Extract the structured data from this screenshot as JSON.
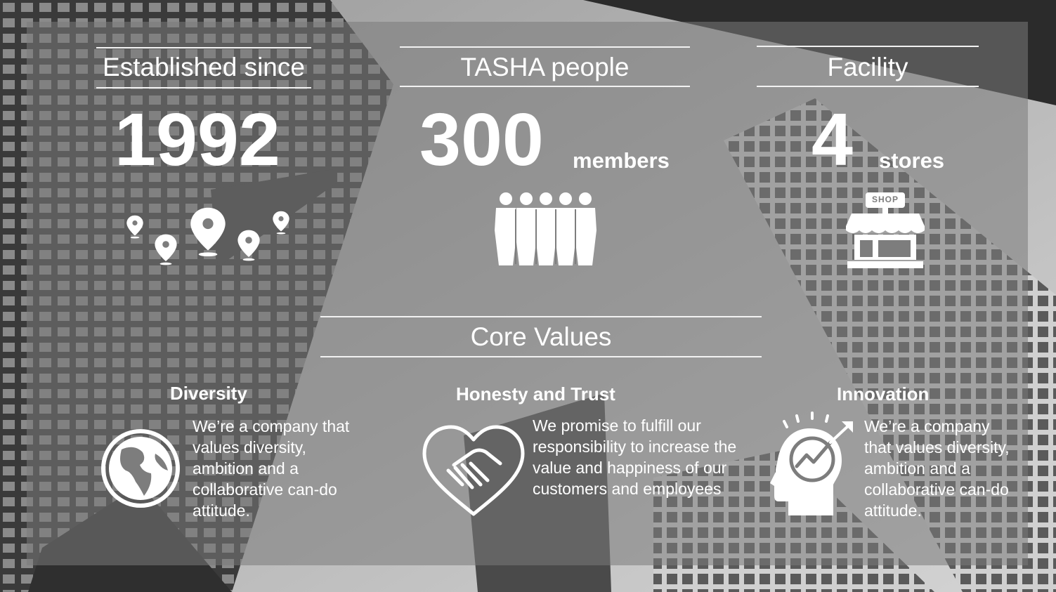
{
  "stats": [
    {
      "heading": "Established since",
      "value": "1992",
      "unit": "",
      "icon": "map-pins-icon"
    },
    {
      "heading": "TASHA people",
      "value": "300",
      "unit": "members",
      "icon": "people-group-icon"
    },
    {
      "heading": "Facility",
      "value": "4",
      "unit": "stores",
      "icon": "shop-icon"
    }
  ],
  "core_values": {
    "heading": "Core Values",
    "items": [
      {
        "title": "Diversity",
        "text": "We’re a company that values diversity, ambition and a collaborative can-do attitude.",
        "icon": "globe-icon"
      },
      {
        "title": "Honesty and Trust",
        "text": "We promise to fulfill our responsibility to increase the value and happiness of our customers and employees",
        "icon": "heart-handshake-icon"
      },
      {
        "title": "Innovation",
        "text": "We’re a company that values diversity, ambition and a collaborative can-do attitude.",
        "icon": "head-growth-icon"
      }
    ]
  },
  "shop_sign": "SHOP",
  "colors": {
    "text": "#ffffff",
    "panel": "#7a7a7a",
    "background": "#6d6d6d"
  }
}
